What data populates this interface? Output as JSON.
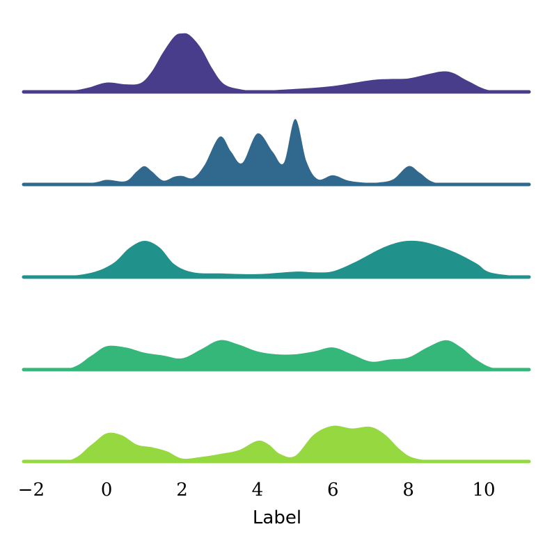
{
  "chart_data": {
    "type": "ridgeline",
    "xlabel": "Label",
    "xlim": [
      -2.2,
      11.2
    ],
    "xticks": [
      {
        "value": -2,
        "label": "−2"
      },
      {
        "value": 0,
        "label": "0"
      },
      {
        "value": 2,
        "label": "2"
      },
      {
        "value": 4,
        "label": "4"
      },
      {
        "value": 6,
        "label": "6"
      },
      {
        "value": 8,
        "label": "8"
      },
      {
        "value": 10,
        "label": "10"
      }
    ],
    "grid": false,
    "series": [
      {
        "color": "#483d8b",
        "x": [
          -2.2,
          -1,
          -0.5,
          0,
          0.5,
          0.9,
          1.2,
          1.5,
          1.8,
          2.0,
          2.2,
          2.5,
          2.8,
          3.1,
          3.5,
          4,
          5,
          6,
          7,
          7.5,
          8,
          8.5,
          8.9,
          9.2,
          9.6,
          10.2,
          11.2
        ],
        "y": [
          0.0,
          0.02,
          0.07,
          0.16,
          0.13,
          0.15,
          0.35,
          0.68,
          0.95,
          1.0,
          0.97,
          0.75,
          0.4,
          0.14,
          0.05,
          0.02,
          0.05,
          0.1,
          0.2,
          0.22,
          0.23,
          0.3,
          0.35,
          0.32,
          0.18,
          0.02,
          0.0
        ]
      },
      {
        "color": "#31688e",
        "x": [
          -2.2,
          -0.5,
          0,
          0.5,
          0.8,
          1.0,
          1.2,
          1.5,
          1.8,
          2.0,
          2.3,
          2.6,
          3.0,
          3.3,
          3.6,
          4.0,
          4.4,
          4.7,
          5.0,
          5.3,
          5.6,
          6.0,
          6.4,
          6.8,
          7.2,
          7.6,
          8.0,
          8.3,
          8.7,
          9.5,
          11.2
        ],
        "y": [
          0.0,
          0.02,
          0.07,
          0.05,
          0.2,
          0.28,
          0.2,
          0.06,
          0.12,
          0.13,
          0.1,
          0.3,
          0.73,
          0.5,
          0.33,
          0.78,
          0.5,
          0.33,
          1.0,
          0.35,
          0.08,
          0.14,
          0.06,
          0.03,
          0.03,
          0.08,
          0.28,
          0.18,
          0.03,
          0.0,
          0.0
        ]
      },
      {
        "color": "#21918c",
        "x": [
          -2.2,
          -1,
          -0.3,
          0.2,
          0.6,
          1.0,
          1.4,
          1.8,
          2.3,
          3,
          4,
          5,
          5.5,
          6,
          6.6,
          7.2,
          7.6,
          8.0,
          8.5,
          9.2,
          9.8,
          10.2,
          11.2
        ],
        "y": [
          0.0,
          0.03,
          0.15,
          0.4,
          0.8,
          1.0,
          0.82,
          0.35,
          0.13,
          0.1,
          0.08,
          0.15,
          0.13,
          0.16,
          0.42,
          0.75,
          0.92,
          1.0,
          0.95,
          0.7,
          0.38,
          0.12,
          0.0
        ]
      },
      {
        "color": "#35b779",
        "x": [
          -2.2,
          -1,
          -0.4,
          0,
          0.5,
          1.0,
          1.5,
          2.0,
          2.5,
          3.0,
          3.5,
          4.0,
          4.5,
          5.0,
          5.5,
          6.0,
          6.5,
          7.0,
          7.5,
          8.0,
          8.5,
          9.0,
          9.4,
          9.8,
          10.3,
          11.2
        ],
        "y": [
          0.0,
          0.03,
          0.35,
          0.58,
          0.55,
          0.42,
          0.35,
          0.28,
          0.5,
          0.73,
          0.62,
          0.45,
          0.38,
          0.38,
          0.45,
          0.55,
          0.38,
          0.2,
          0.25,
          0.3,
          0.55,
          0.73,
          0.55,
          0.25,
          0.03,
          0.0
        ]
      },
      {
        "color": "#95d840",
        "x": [
          -2.2,
          -1,
          -0.4,
          0,
          0.4,
          0.8,
          1.2,
          1.6,
          2.0,
          2.5,
          3.0,
          3.5,
          4.0,
          4.3,
          4.6,
          5.0,
          5.5,
          6.0,
          6.5,
          7.0,
          7.4,
          7.8,
          8.2,
          9,
          11.2
        ],
        "y": [
          0.0,
          0.03,
          0.45,
          0.75,
          0.7,
          0.45,
          0.38,
          0.27,
          0.08,
          0.12,
          0.2,
          0.3,
          0.55,
          0.45,
          0.2,
          0.15,
          0.72,
          0.95,
          0.88,
          0.92,
          0.7,
          0.3,
          0.08,
          0.02,
          0.0
        ]
      }
    ]
  }
}
